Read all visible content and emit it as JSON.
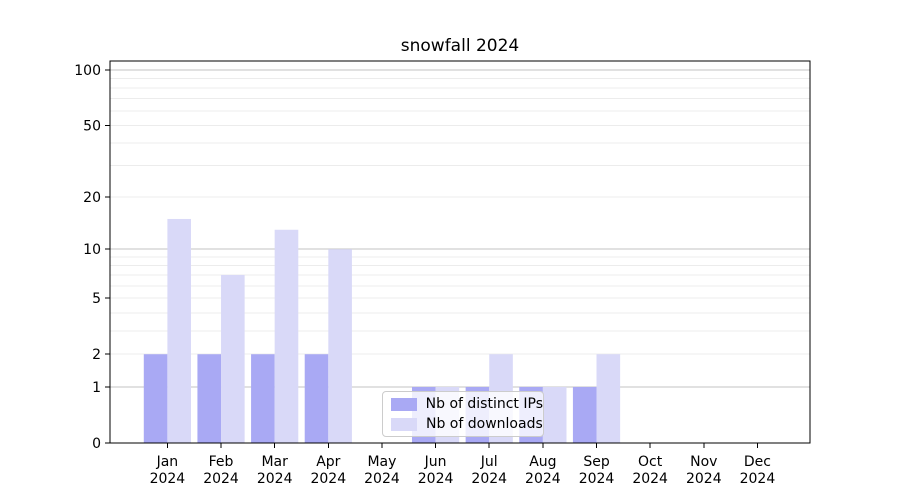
{
  "figure": {
    "background": "#ffffff"
  },
  "chart_data": {
    "type": "bar",
    "title": "snowfall 2024",
    "xlabel": "",
    "ylabel": "",
    "categories": [
      "Jan",
      "Feb",
      "Mar",
      "Apr",
      "May",
      "Jun",
      "Jul",
      "Aug",
      "Sep",
      "Oct",
      "Nov",
      "Dec"
    ],
    "xticklabel_line2": "2024",
    "series": [
      {
        "name": "Nb of distinct IPs",
        "color": "#a9a9f4",
        "values": [
          2,
          2,
          2,
          2,
          0,
          1,
          1,
          1,
          1,
          0,
          0,
          0
        ]
      },
      {
        "name": "Nb of downloads",
        "color": "#d9d9f8",
        "values": [
          15,
          7,
          13,
          10,
          0,
          1,
          2,
          1,
          2,
          0,
          0,
          0
        ]
      }
    ],
    "yscale": "log1p",
    "ylim": [
      0,
      112
    ],
    "yticks": [
      0,
      1,
      2,
      5,
      10,
      20,
      50,
      100
    ],
    "grid": {
      "major_lines": [
        1,
        10,
        100
      ],
      "minor_lines": [
        2,
        3,
        4,
        5,
        6,
        7,
        8,
        9,
        20,
        30,
        40,
        50,
        60,
        70,
        80,
        90
      ],
      "major_color": "#c3c3c3",
      "minor_color": "#ececec"
    },
    "legend": {
      "position": "lower center",
      "border_color": "#cccccc"
    },
    "axis_color": "#000000",
    "text_color": "#000000"
  }
}
